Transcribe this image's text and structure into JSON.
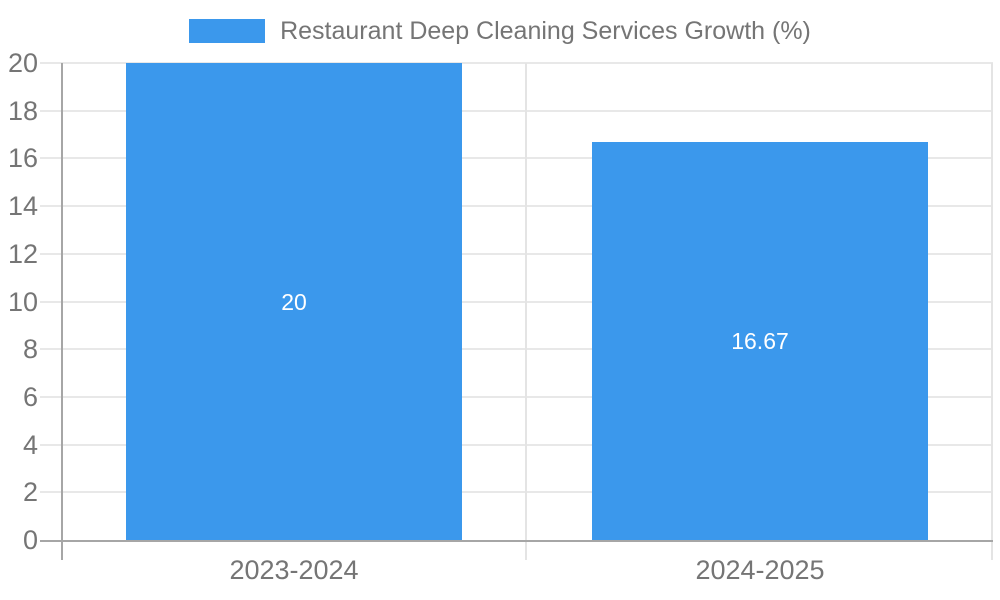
{
  "chart_data": {
    "type": "bar",
    "title": "Restaurant Deep Cleaning Services Growth (%)",
    "categories": [
      "2023-2024",
      "2024-2025"
    ],
    "values": [
      20,
      16.67
    ],
    "value_labels": [
      "20",
      "16.67"
    ],
    "y_ticks": [
      0,
      2,
      4,
      6,
      8,
      10,
      12,
      14,
      16,
      18,
      20
    ],
    "ylim": [
      0,
      20
    ],
    "xlabel": "",
    "ylabel": "",
    "grid": true,
    "legend_position": "top",
    "colors": {
      "bar": "#3b98ec",
      "value_label": "#ffffff",
      "axis_text": "#757575",
      "gridline": "#e8e8e8",
      "axis_line": "#a6a6a6",
      "background": "#ffffff"
    }
  }
}
